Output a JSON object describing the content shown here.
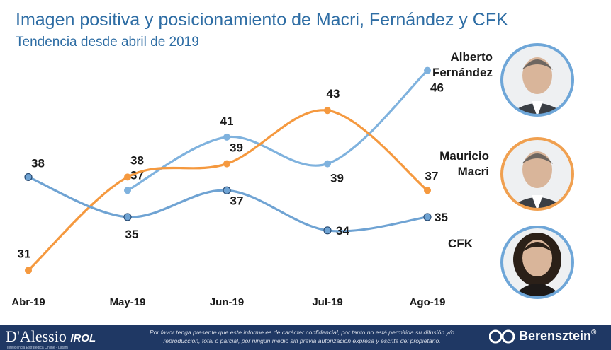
{
  "chart_data": {
    "type": "line",
    "title": "Imagen positiva y posicionamiento de Macri, Fernández y CFK",
    "subtitle": "Tendencia desde abril de 2019",
    "categories": [
      "Abr-19",
      "May-19",
      "Jun-19",
      "Jul-19",
      "Ago-19"
    ],
    "ylim": [
      29,
      48
    ],
    "grid": false,
    "legend": "right (portraits)",
    "series": [
      {
        "name": "Alberto Fernández",
        "color": "#7fb2de",
        "values": [
          null,
          37,
          41,
          39,
          46
        ],
        "labels": [
          "",
          "37",
          "41",
          "39",
          "46"
        ]
      },
      {
        "name": "Mauricio Macri",
        "color": "#f5993f",
        "values": [
          31,
          38,
          39,
          43,
          37
        ],
        "labels": [
          "31",
          "38",
          "39",
          "43",
          "37"
        ]
      },
      {
        "name": "CFK",
        "color": "#6fa3d3",
        "values": [
          38,
          35,
          37,
          34,
          35
        ],
        "labels": [
          "38",
          "35",
          "37",
          "34",
          "35"
        ]
      }
    ]
  },
  "portraits": [
    {
      "name_line1": "Alberto",
      "name_line2": "Fernández",
      "ring_color": "#6ea6d8"
    },
    {
      "name_line1": "Mauricio",
      "name_line2": "Macri",
      "ring_color": "#f0a050"
    },
    {
      "name_line1": "",
      "name_line2": "CFK",
      "ring_color": "#6ea6d8"
    }
  ],
  "footer": {
    "left_logo": "D'Alessio",
    "left_logo_suffix": "IROL",
    "left_tagline": "Inteligencia Estratégica Online · Latam",
    "note_line1": "Por favor tenga presente que este informe es de carácter confidencial, por tanto no está permitida su difusión y/o",
    "note_line2": "reproducción, total o parcial, por ningún medio sin previa autorización expresa y escrita del propietario.",
    "right_logo": "Berensztein",
    "right_logo_mark": "®"
  }
}
